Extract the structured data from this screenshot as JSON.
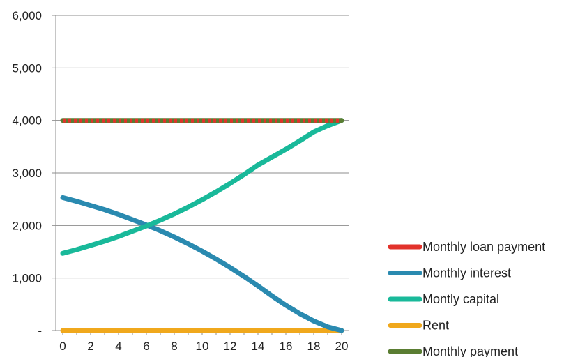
{
  "chart_data": {
    "type": "line",
    "title": "",
    "xlabel": "",
    "ylabel": "",
    "x": [
      0,
      1,
      2,
      3,
      4,
      5,
      6,
      7,
      8,
      9,
      10,
      11,
      12,
      13,
      14,
      15,
      16,
      17,
      18,
      19,
      20
    ],
    "xticks": [
      0,
      2,
      4,
      6,
      8,
      10,
      12,
      14,
      16,
      18,
      20
    ],
    "xlim": [
      -0.5,
      20.5
    ],
    "ylim": [
      0,
      6000
    ],
    "yticks": [
      0,
      1000,
      2000,
      3000,
      4000,
      5000,
      6000
    ],
    "ytick_labels": [
      "-",
      "1,000",
      "2,000",
      "3,000",
      "4,000",
      "5,000",
      "6,000"
    ],
    "grid": "horizontal",
    "legend_position": "right-bottom",
    "series": [
      {
        "name": "Monthly loan payment",
        "color": "#e2322b",
        "values": [
          4000,
          4000,
          4000,
          4000,
          4000,
          4000,
          4000,
          4000,
          4000,
          4000,
          4000,
          4000,
          4000,
          4000,
          4000,
          4000,
          4000,
          4000,
          4000,
          4000,
          4000
        ]
      },
      {
        "name": "Monthly interest",
        "color": "#2a8ab0",
        "values": [
          2530,
          2460,
          2380,
          2300,
          2210,
          2110,
          2010,
          1900,
          1780,
          1650,
          1510,
          1360,
          1200,
          1030,
          850,
          660,
          480,
          320,
          180,
          70,
          0
        ]
      },
      {
        "name": "Montly capital",
        "color": "#19b99a",
        "values": [
          1470,
          1540,
          1620,
          1700,
          1790,
          1890,
          1990,
          2100,
          2220,
          2350,
          2490,
          2640,
          2800,
          2970,
          3150,
          3300,
          3450,
          3610,
          3780,
          3900,
          4000
        ]
      },
      {
        "name": "Rent",
        "color": "#f0a81c",
        "values": [
          0,
          0,
          0,
          0,
          0,
          0,
          0,
          0,
          0,
          0,
          0,
          0,
          0,
          0,
          0,
          0,
          0,
          0,
          0,
          0,
          0
        ]
      },
      {
        "name": "Monthly payment",
        "color": "#5a7d32",
        "values": [
          4000,
          4000,
          4000,
          4000,
          4000,
          4000,
          4000,
          4000,
          4000,
          4000,
          4000,
          4000,
          4000,
          4000,
          4000,
          4000,
          4000,
          4000,
          4000,
          4000,
          4000
        ]
      }
    ]
  }
}
